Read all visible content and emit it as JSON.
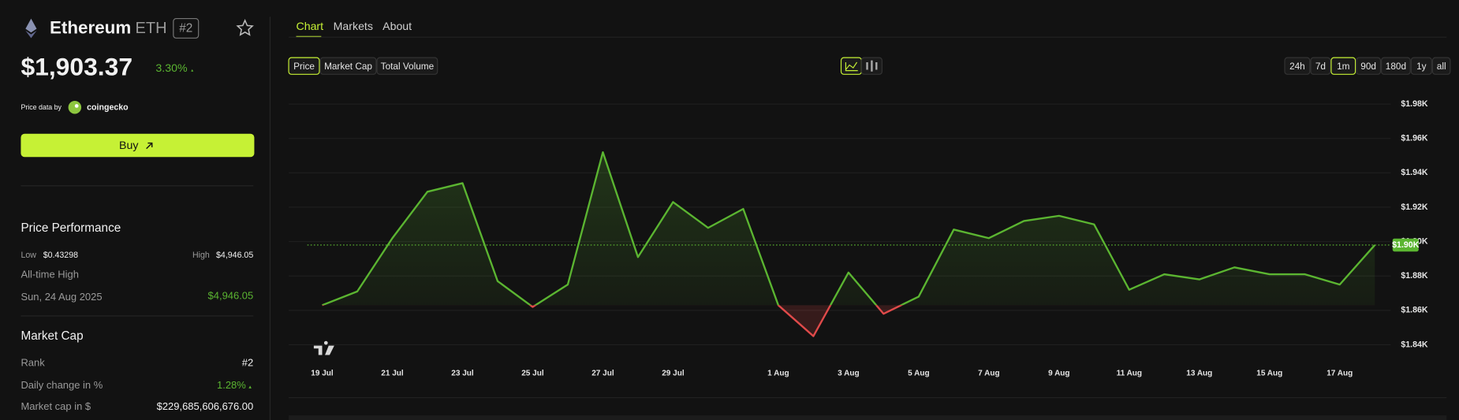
{
  "header": {
    "name": "Ethereum",
    "symbol": "ETH",
    "rank": "#2",
    "price": "$1,903.37",
    "change": "3.30%",
    "price_data_by": "Price data by",
    "source": "coingecko",
    "buy": "Buy"
  },
  "performance": {
    "title": "Price Performance",
    "low_label": "Low",
    "low": "$0.43298",
    "high_label": "High",
    "high": "$4,946.05",
    "ath_label": "All-time High",
    "ath_date": "Sun, 24 Aug 2025",
    "ath_value": "$4,946.05"
  },
  "market_cap": {
    "title": "Market Cap",
    "rows": [
      [
        "Rank",
        "#2"
      ],
      [
        "Daily change in %",
        "1.28%"
      ],
      [
        "Market cap in $",
        "$229,685,606,676.00"
      ]
    ]
  },
  "tabs": [
    "Chart",
    "Markets",
    "About"
  ],
  "metrics": [
    "Price",
    "Market Cap",
    "Total Volume"
  ],
  "ranges": [
    "24h",
    "7d",
    "1m",
    "90d",
    "180d",
    "1y",
    "all"
  ],
  "chart_data": {
    "type": "line",
    "categories": [
      "19 Jul",
      null,
      "21 Jul",
      null,
      "23 Jul",
      null,
      "25 Jul",
      null,
      "27 Jul",
      null,
      "29 Jul",
      null,
      null,
      "1 Aug",
      null,
      "3 Aug",
      null,
      "5 Aug",
      null,
      "7 Aug",
      null,
      "9 Aug",
      null,
      "11 Aug",
      null,
      "13 Aug",
      null,
      "15 Aug",
      null,
      "17 Aug",
      null
    ],
    "values": [
      1863,
      1871,
      1902,
      1929,
      1934,
      1877,
      1862,
      1875,
      1952,
      1891,
      1923,
      1908,
      1919,
      1863,
      1845,
      1882,
      1858,
      1868,
      1907,
      1902,
      1912,
      1915,
      1910,
      1872,
      1881,
      1878,
      1885,
      1881,
      1881,
      1875,
      1898
    ],
    "color": "#5bb531",
    "below_color": "#e04a4a",
    "price_label": "$1.90K",
    "ylim": [
      1830,
      1990
    ],
    "yticks": [
      {
        "value": 1840,
        "label": "$1.84K"
      },
      {
        "value": 1860,
        "label": "$1.86K"
      },
      {
        "value": 1880,
        "label": "$1.88K"
      },
      {
        "value": 1900,
        "label": "$1.90K"
      },
      {
        "value": 1920,
        "label": "$1.92K"
      },
      {
        "value": 1940,
        "label": "$1.94K"
      },
      {
        "value": 1960,
        "label": "$1.96K"
      },
      {
        "value": 1980,
        "label": "$1.98K"
      }
    ],
    "grid": true
  }
}
